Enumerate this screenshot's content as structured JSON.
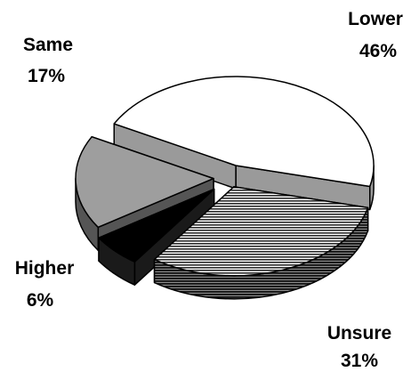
{
  "chart_data": {
    "type": "pie",
    "style": "3d-exploded",
    "categories": [
      "Lower",
      "Unsure",
      "Higher",
      "Same"
    ],
    "values": [
      46,
      31,
      6,
      17
    ],
    "value_labels": [
      "46%",
      "31%",
      "6%",
      "17%"
    ],
    "colors": {
      "Lower": "#ffffff",
      "Unsure": "#3a3a3a",
      "Higher": "#000000",
      "Same": "#9e9e9e"
    },
    "patterns": {
      "Unsure": "horizontal-stripes"
    },
    "legend": "none"
  }
}
